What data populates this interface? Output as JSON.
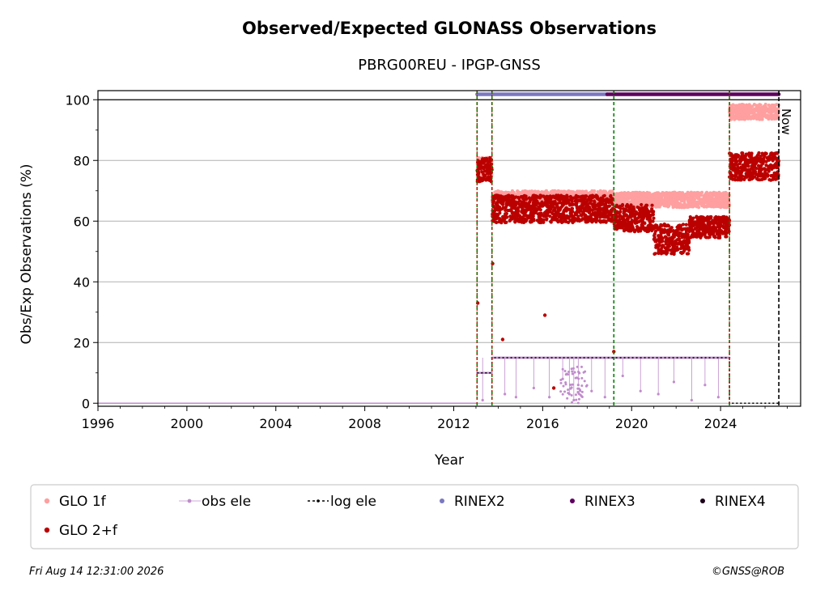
{
  "chart_data": {
    "type": "scatter",
    "title": "Observed/Expected GLONASS Observations",
    "subtitle": "PBRG00REU - IPGP-GNSS",
    "xlabel": "Year",
    "ylabel": "Obs/Exp Observations (%)",
    "xlim": [
      1996,
      2027.6
    ],
    "ylim": [
      -1,
      103
    ],
    "x_ticks": [
      "1996",
      "2000",
      "2004",
      "2008",
      "2012",
      "2016",
      "2020",
      "2024"
    ],
    "y_ticks": [
      "0",
      "20",
      "40",
      "60",
      "80",
      "100"
    ],
    "grid": "horizontal",
    "now_label": "Now",
    "now_x": 2026.62,
    "event_lines_red": [
      2013.05,
      2013.72,
      2024.4
    ],
    "event_lines_green": [
      2013.05,
      2013.72,
      2019.2,
      2024.4
    ],
    "series": [
      {
        "name": "GLO 1f",
        "color": "#ff9f9f",
        "segments": [
          {
            "x": [
              2013.05,
              2013.72
            ],
            "y_center": 78,
            "y_spread": 3
          },
          {
            "x": [
              2013.72,
              2019.2
            ],
            "y_center": 68,
            "y_spread": 2
          },
          {
            "x": [
              2019.2,
              2024.4
            ],
            "y_center": 67,
            "y_spread": 2.5
          },
          {
            "x": [
              2024.4,
              2026.62
            ],
            "y_center": 96,
            "y_spread": 2.5
          }
        ]
      },
      {
        "name": "GLO 2+f",
        "color": "#bb0000",
        "segments": [
          {
            "x": [
              2013.05,
              2013.72
            ],
            "y_center": 77,
            "y_spread": 4
          },
          {
            "x": [
              2013.72,
              2019.2
            ],
            "y_center": 64,
            "y_spread": 4.5
          },
          {
            "x": [
              2019.2,
              2021.0
            ],
            "y_center": 61,
            "y_spread": 4.5
          },
          {
            "x": [
              2021.0,
              2022.6
            ],
            "y_center": 54,
            "y_spread": 5
          },
          {
            "x": [
              2022.6,
              2024.4
            ],
            "y_center": 58,
            "y_spread": 3.5
          },
          {
            "x": [
              2024.4,
              2026.62
            ],
            "y_center": 78,
            "y_spread": 4.5
          }
        ],
        "outliers": [
          [
            2013.08,
            33
          ],
          [
            2013.75,
            46
          ],
          [
            2014.2,
            21
          ],
          [
            2016.1,
            29
          ],
          [
            2016.5,
            5
          ],
          [
            2019.2,
            17
          ]
        ]
      },
      {
        "name": "obs ele",
        "color": "#c08ccc",
        "segments": [
          {
            "x": [
              2013.05,
              2013.72
            ],
            "y_center": 10,
            "y_spread": 0
          },
          {
            "x": [
              2013.72,
              2024.4
            ],
            "y_center": 15,
            "y_spread": 0
          }
        ],
        "drops": [
          [
            2013.3,
            1
          ],
          [
            2014.3,
            3
          ],
          [
            2014.8,
            2
          ],
          [
            2015.6,
            5
          ],
          [
            2016.3,
            2
          ],
          [
            2016.9,
            8
          ],
          [
            2017.2,
            3
          ],
          [
            2017.4,
            1
          ],
          [
            2017.6,
            6
          ],
          [
            2018.2,
            4
          ],
          [
            2018.8,
            2
          ],
          [
            2019.6,
            9
          ],
          [
            2020.4,
            4
          ],
          [
            2021.2,
            3
          ],
          [
            2021.9,
            7
          ],
          [
            2022.7,
            1
          ],
          [
            2023.3,
            6
          ],
          [
            2023.9,
            2
          ]
        ]
      },
      {
        "name": "log ele",
        "color": "#000000",
        "steps": [
          [
            2013.05,
            10
          ],
          [
            2013.72,
            15
          ],
          [
            2024.4,
            0
          ],
          [
            2026.62,
            0
          ]
        ]
      },
      {
        "name": "RINEX2",
        "color": "#7b78c0",
        "x_range": [
          2013.05,
          2018.9
        ],
        "y": 101.8
      },
      {
        "name": "RINEX3",
        "color": "#5e005e",
        "x_range": [
          2018.9,
          2026.62
        ],
        "y": 101.8
      },
      {
        "name": "RINEX4",
        "color": "#1a0018",
        "x_range": [],
        "y": 101.8
      }
    ],
    "legend_placement": "bottom"
  },
  "footer": {
    "timestamp": "Fri Aug 14 12:31:00 2026",
    "credit": "©GNSS@ROB"
  }
}
